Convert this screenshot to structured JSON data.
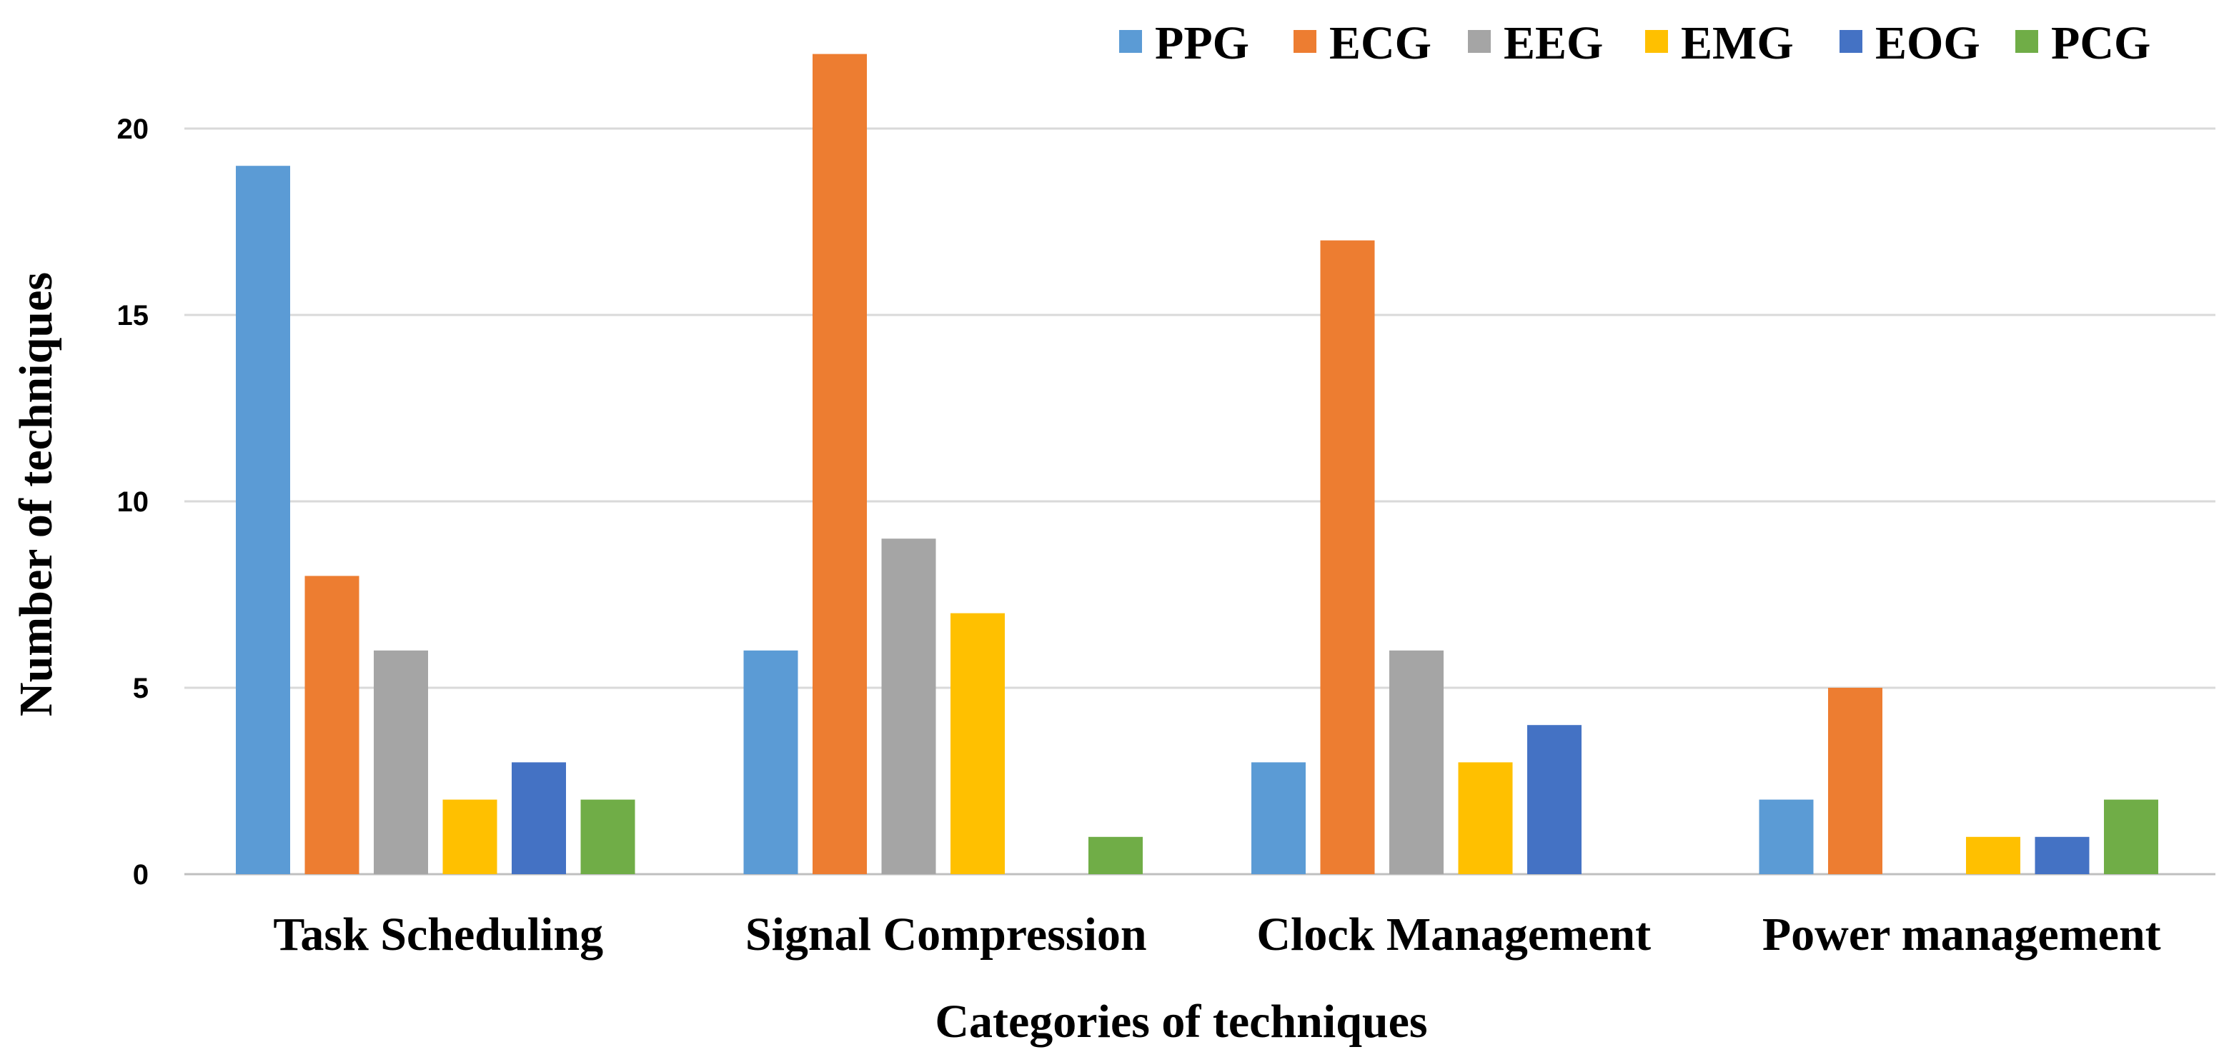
{
  "chart_data": {
    "type": "bar",
    "title": "",
    "xlabel": "Categories of techniques",
    "ylabel": "Number of techniques",
    "ylim": [
      0,
      22.5
    ],
    "yticks": [
      0,
      5,
      10,
      15,
      20
    ],
    "grid": true,
    "legend_position": "top-right",
    "categories": [
      "Task Scheduling",
      "Signal Compression",
      "Clock Management",
      "Power management"
    ],
    "series": [
      {
        "name": "PPG",
        "color": "#5b9bd5",
        "values": [
          19,
          6,
          3,
          2
        ]
      },
      {
        "name": "ECG",
        "color": "#ed7d31",
        "values": [
          8,
          22,
          17,
          5
        ]
      },
      {
        "name": "EEG",
        "color": "#a5a5a5",
        "values": [
          6,
          9,
          6,
          0
        ]
      },
      {
        "name": "EMG",
        "color": "#ffc000",
        "values": [
          2,
          7,
          3,
          1
        ]
      },
      {
        "name": "EOG",
        "color": "#4472c4",
        "values": [
          3,
          0,
          4,
          1
        ]
      },
      {
        "name": "PCG",
        "color": "#70ad47",
        "values": [
          2,
          1,
          0,
          2
        ]
      }
    ]
  }
}
